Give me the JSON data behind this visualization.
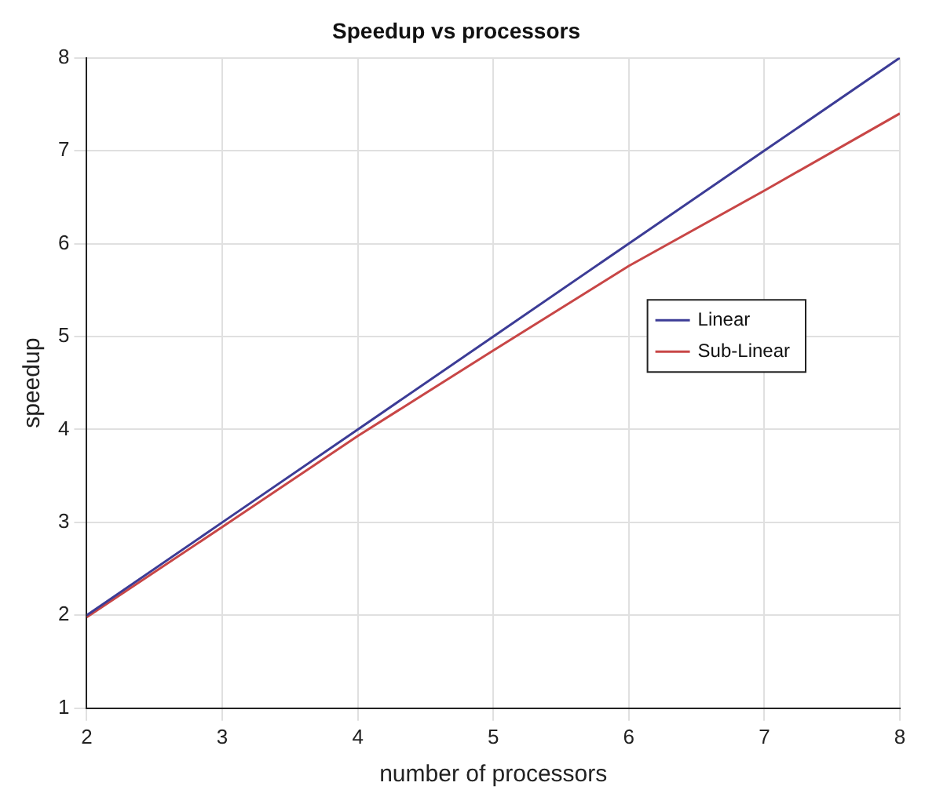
{
  "chart_data": {
    "type": "line",
    "title": "Speedup vs processors",
    "xlabel": "number of processors",
    "ylabel": "speedup",
    "x": [
      2,
      3,
      4,
      5,
      6,
      7,
      8
    ],
    "series": [
      {
        "name": "Linear",
        "color": "#3c3c96",
        "values": [
          2,
          3,
          4,
          5,
          6,
          7,
          8
        ]
      },
      {
        "name": "Sub-Linear",
        "color": "#c84646",
        "values": [
          1.98,
          2.95,
          3.93,
          4.85,
          5.76,
          6.57,
          7.4
        ]
      }
    ],
    "xlim": [
      2,
      8
    ],
    "xticks": [
      2,
      3,
      4,
      5,
      6,
      7,
      8
    ],
    "ylim": [
      1,
      8
    ],
    "yticks": [
      1,
      2,
      3,
      4,
      5,
      6,
      7,
      8
    ],
    "grid": true,
    "legend": "right",
    "marker": "none",
    "line_style": "solid"
  }
}
